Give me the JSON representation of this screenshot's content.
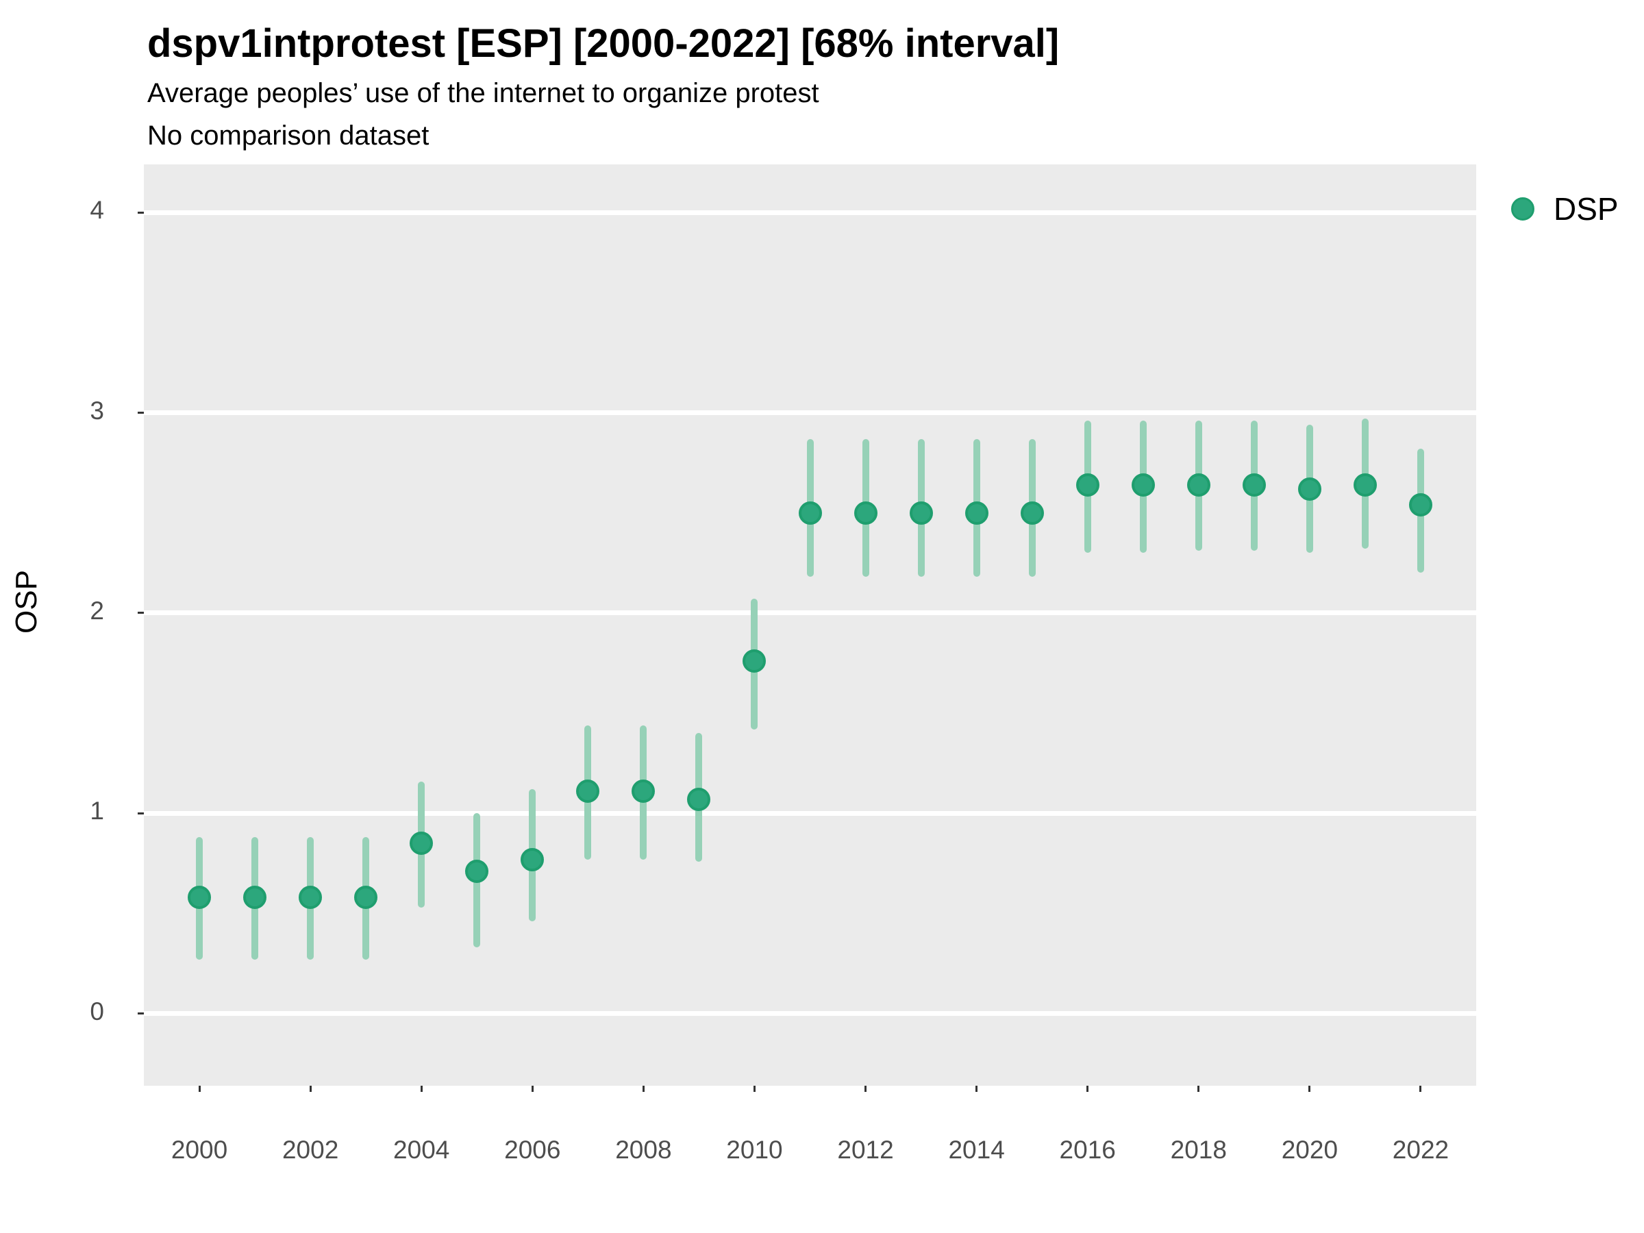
{
  "title": "dspv1intprotest [ESP] [2000-2022] [68% interval]",
  "subtitle": "Average peoples’ use of the internet to organize protest",
  "subtitle2": "No comparison dataset",
  "y_axis": {
    "label": "OSP",
    "ticks": [
      0,
      1,
      2,
      3,
      4
    ]
  },
  "x_axis": {
    "ticks": [
      2000,
      2002,
      2004,
      2006,
      2008,
      2010,
      2012,
      2014,
      2016,
      2018,
      2020,
      2022
    ]
  },
  "legend": {
    "label": "DSP"
  },
  "colors": {
    "point_fill": "#2CA77C",
    "point_stroke": "#1F9E6E",
    "interval_bar": "#96D1B7",
    "panel_bg": "#EBEBEB",
    "gridline": "#FFFFFF",
    "tick_text": "#4D4D4D",
    "axis_tick": "#333333"
  },
  "chart_data": {
    "type": "scatter",
    "title": "dspv1intprotest [ESP] [2000-2022] [68% interval]",
    "subtitle": "Average peoples’ use of the internet to organize protest",
    "note": "No comparison dataset",
    "xlabel": "",
    "ylabel": "OSP",
    "interval": "68%",
    "legend_position": "top-right",
    "grid": "major-horizontal-only",
    "xlim": [
      1999,
      2023
    ],
    "ylim": [
      -0.36,
      4.24
    ],
    "x_ticks": [
      2000,
      2002,
      2004,
      2006,
      2008,
      2010,
      2012,
      2014,
      2016,
      2018,
      2020,
      2022
    ],
    "y_ticks": [
      0,
      1,
      2,
      3,
      4
    ],
    "series": [
      {
        "name": "DSP",
        "points": [
          {
            "year": 2000,
            "value": 0.58,
            "lo": 0.27,
            "hi": 0.88
          },
          {
            "year": 2001,
            "value": 0.58,
            "lo": 0.27,
            "hi": 0.88
          },
          {
            "year": 2002,
            "value": 0.58,
            "lo": 0.27,
            "hi": 0.88
          },
          {
            "year": 2003,
            "value": 0.58,
            "lo": 0.27,
            "hi": 0.88
          },
          {
            "year": 2004,
            "value": 0.85,
            "lo": 0.53,
            "hi": 1.16
          },
          {
            "year": 2005,
            "value": 0.71,
            "lo": 0.33,
            "hi": 1.0
          },
          {
            "year": 2006,
            "value": 0.77,
            "lo": 0.46,
            "hi": 1.12
          },
          {
            "year": 2007,
            "value": 1.11,
            "lo": 0.77,
            "hi": 1.44
          },
          {
            "year": 2008,
            "value": 1.11,
            "lo": 0.77,
            "hi": 1.44
          },
          {
            "year": 2009,
            "value": 1.07,
            "lo": 0.76,
            "hi": 1.4
          },
          {
            "year": 2010,
            "value": 1.76,
            "lo": 1.42,
            "hi": 2.07
          },
          {
            "year": 2011,
            "value": 2.5,
            "lo": 2.18,
            "hi": 2.87
          },
          {
            "year": 2012,
            "value": 2.5,
            "lo": 2.18,
            "hi": 2.87
          },
          {
            "year": 2013,
            "value": 2.5,
            "lo": 2.18,
            "hi": 2.87
          },
          {
            "year": 2014,
            "value": 2.5,
            "lo": 2.18,
            "hi": 2.87
          },
          {
            "year": 2015,
            "value": 2.5,
            "lo": 2.18,
            "hi": 2.87
          },
          {
            "year": 2016,
            "value": 2.64,
            "lo": 2.3,
            "hi": 2.96
          },
          {
            "year": 2017,
            "value": 2.64,
            "lo": 2.3,
            "hi": 2.96
          },
          {
            "year": 2018,
            "value": 2.64,
            "lo": 2.31,
            "hi": 2.96
          },
          {
            "year": 2019,
            "value": 2.64,
            "lo": 2.31,
            "hi": 2.96
          },
          {
            "year": 2020,
            "value": 2.62,
            "lo": 2.3,
            "hi": 2.94
          },
          {
            "year": 2021,
            "value": 2.64,
            "lo": 2.32,
            "hi": 2.97
          },
          {
            "year": 2022,
            "value": 2.54,
            "lo": 2.2,
            "hi": 2.82
          }
        ]
      }
    ]
  }
}
